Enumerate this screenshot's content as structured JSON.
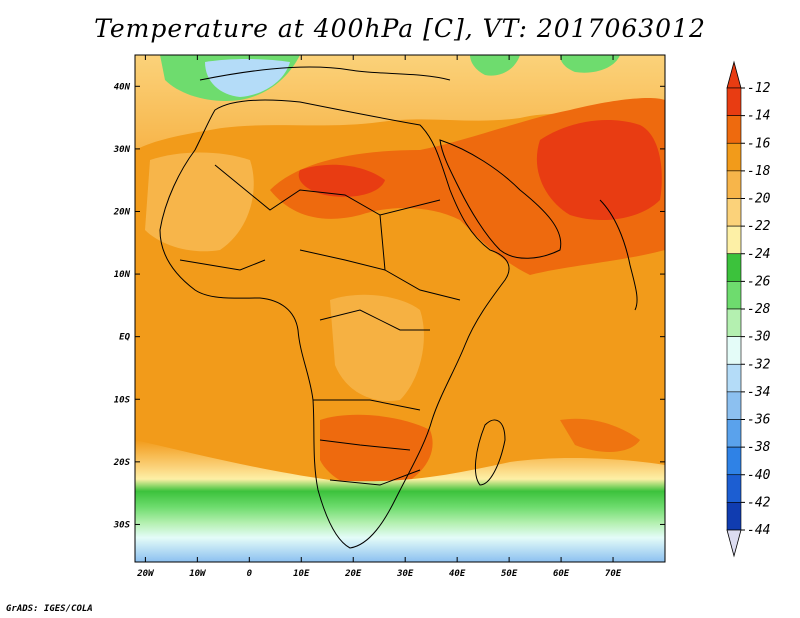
{
  "title": "Temperature at 400hPa [C], VT: 2017063012",
  "credit": "GrADS: IGES/COLA",
  "map": {
    "lon_range": [
      -22,
      80
    ],
    "lat_range": [
      -36,
      45
    ],
    "x_ticks": [
      {
        "lon": -20,
        "label": "20W"
      },
      {
        "lon": -10,
        "label": "10W"
      },
      {
        "lon": 0,
        "label": "0"
      },
      {
        "lon": 10,
        "label": "10E"
      },
      {
        "lon": 20,
        "label": "20E"
      },
      {
        "lon": 30,
        "label": "30E"
      },
      {
        "lon": 40,
        "label": "40E"
      },
      {
        "lon": 50,
        "label": "50E"
      },
      {
        "lon": 60,
        "label": "60E"
      },
      {
        "lon": 70,
        "label": "70E"
      }
    ],
    "y_ticks": [
      {
        "lat": 40,
        "label": "40N"
      },
      {
        "lat": 30,
        "label": "30N"
      },
      {
        "lat": 20,
        "label": "20N"
      },
      {
        "lat": 10,
        "label": "10N"
      },
      {
        "lat": 0,
        "label": "EQ"
      },
      {
        "lat": -10,
        "label": "10S"
      },
      {
        "lat": -20,
        "label": "20S"
      },
      {
        "lat": -30,
        "label": "30S"
      }
    ]
  },
  "colorbar": {
    "labels": [
      "-12",
      "-14",
      "-16",
      "-18",
      "-20",
      "-22",
      "-24",
      "-26",
      "-28",
      "-30",
      "-32",
      "-34",
      "-36",
      "-38",
      "-40",
      "-42",
      "-44"
    ],
    "colors": [
      "#e83c12",
      "#ee6a0e",
      "#f29b1a",
      "#f7b54a",
      "#fbd27a",
      "#fdf0a6",
      "#3cc23c",
      "#6edc6e",
      "#b4f0b0",
      "#e4fcf8",
      "#b4dcf8",
      "#8cc0f0",
      "#5aa2ec",
      "#2f82e6",
      "#1c5ed2",
      "#103cb0",
      "#081e7c"
    ],
    "top_color": "#e83c12",
    "bottom_color": "#dcdcf0"
  }
}
